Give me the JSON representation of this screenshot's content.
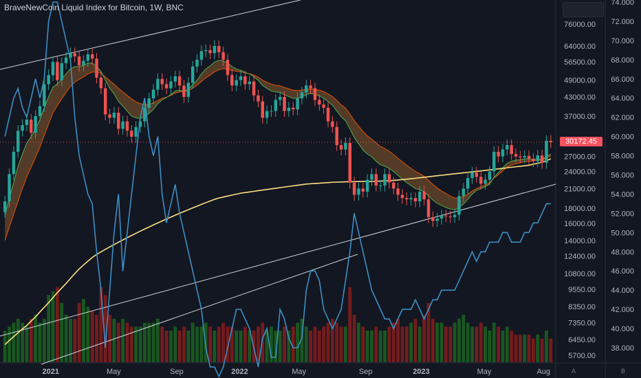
{
  "title": "BraveNewCoin Liquid Index for Bitcoin, 1W, BNC",
  "last_price_label": "30172.45",
  "bottom_buttons": [
    "A",
    "B"
  ],
  "colors": {
    "background": "#131722",
    "up_candle": "#26a69a",
    "down_candle": "#ef5350",
    "ema_fast": "#4caf50",
    "ema_slow": "#e65100",
    "ma_200": "#ffe082",
    "indicator_line": "#3d8fc4",
    "price_line": "#f7525f"
  },
  "chart_data": {
    "type": "line",
    "x_ticks": [
      "2021",
      "May",
      "Sep",
      "2022",
      "May",
      "Sep",
      "2023",
      "May",
      "Aug"
    ],
    "price_axis": {
      "scale": "log",
      "tick_labels": [
        "76000.00",
        "64000.00",
        "56500.00",
        "49000.00",
        "43000.00",
        "37000.00",
        "27000.00",
        "24000.00",
        "21000.00",
        "18000.00",
        "16000.00",
        "14000.00",
        "12400.00",
        "10800.00",
        "9550.00",
        "8350.00",
        "7350.00",
        "6450.00",
        "5700.00"
      ]
    },
    "indicator_axis": {
      "tick_labels": [
        "74.000",
        "72.000",
        "70.000",
        "68.000",
        "66.000",
        "64.000",
        "62.000",
        "60.000",
        "58.000",
        "56.000",
        "54.000",
        "52.000",
        "50.000",
        "48.000",
        "46.000",
        "44.000",
        "42.000",
        "40.000",
        "38.000"
      ]
    },
    "candles_close": [
      19000,
      23500,
      28000,
      33000,
      34500,
      36000,
      32500,
      37000,
      40000,
      47500,
      51000,
      56500,
      49000,
      56000,
      58500,
      60500,
      59000,
      55000,
      57000,
      60000,
      58000,
      50000,
      46000,
      37500,
      36500,
      38000,
      33500,
      35500,
      33000,
      31500,
      34000,
      35500,
      39500,
      42500,
      45500,
      49500,
      47500,
      46000,
      48500,
      50500,
      47000,
      43000,
      48000,
      54500,
      57500,
      61500,
      62000,
      60500,
      64000,
      61000,
      57500,
      51000,
      47000,
      49000,
      50500,
      47500,
      48500,
      43500,
      41500,
      36500,
      38500,
      38500,
      42000,
      43000,
      38500,
      39500,
      39000,
      42500,
      44500,
      47000,
      46000,
      42000,
      40500,
      39500,
      35500,
      34000,
      29500,
      28500,
      30000,
      22000,
      20000,
      21000,
      20500,
      22500,
      23500,
      21500,
      21500,
      23500,
      22000,
      21000,
      20000,
      19500,
      19300,
      19500,
      19000,
      20500,
      19300,
      16800,
      16300,
      16600,
      17000,
      16900,
      16800,
      17100,
      19800,
      21000,
      22800,
      23800,
      23000,
      21800,
      22500,
      24000,
      28000,
      27000,
      28500,
      29500,
      27500,
      27000,
      26800,
      27100,
      26500,
      26000,
      27200,
      25700,
      30500,
      30172
    ],
    "ema_fast": [
      17000,
      19500,
      22000,
      25000,
      27500,
      30000,
      31500,
      33500,
      36000,
      39500,
      43000,
      46500,
      47500,
      49500,
      51500,
      53500,
      54500,
      54500,
      55000,
      56000,
      56000,
      54500,
      52500,
      49000,
      46000,
      44000,
      41500,
      40000,
      38500,
      37000,
      36500,
      36300,
      36800,
      37800,
      39000,
      40800,
      42000,
      42800,
      43800,
      45000,
      45300,
      45000,
      45600,
      47300,
      49000,
      51500,
      53500,
      54800,
      56500,
      57200,
      57000,
      56000,
      54500,
      53500,
      53000,
      52000,
      51500,
      50300,
      49000,
      47000,
      46000,
      45000,
      44700,
      44500,
      43700,
      43100,
      42500,
      42600,
      43000,
      43800,
      44200,
      43800,
      43300,
      42600,
      41500,
      40300,
      38500,
      36800,
      35700,
      33500,
      31300,
      29800,
      28400,
      27500,
      26900,
      26000,
      25300,
      25000,
      24600,
      24000,
      23300,
      22600,
      22000,
      21500,
      21000,
      20800,
      20500,
      19800,
      19200,
      18700,
      18400,
      18100,
      17900,
      17800,
      18100,
      18600,
      19300,
      20100,
      20700,
      21000,
      21300,
      21800,
      22900,
      23800,
      24700,
      25600,
      26000,
      26200,
      26300,
      26500,
      26500,
      26400,
      26500,
      26300,
      27000,
      27500
    ],
    "ema_slow": [
      14000,
      15500,
      17200,
      19000,
      21000,
      23000,
      24800,
      26800,
      29000,
      31800,
      34800,
      38000,
      40200,
      42300,
      44500,
      46700,
      48300,
      49300,
      50300,
      51500,
      52200,
      52200,
      51700,
      50300,
      48800,
      47500,
      46000,
      44700,
      43500,
      42300,
      41400,
      40800,
      40500,
      40600,
      41000,
      41800,
      42500,
      42900,
      43500,
      44300,
      44700,
      44800,
      45200,
      46000,
      47100,
      48500,
      49900,
      51000,
      52300,
      53200,
      53600,
      53400,
      52900,
      52500,
      52300,
      51900,
      51600,
      51000,
      50200,
      49000,
      48200,
      47500,
      47100,
      46900,
      46300,
      45800,
      45300,
      45200,
      45300,
      45600,
      45800,
      45600,
      45300,
      44800,
      44000,
      43100,
      41800,
      40400,
      39400,
      37600,
      35700,
      34200,
      32800,
      31700,
      30900,
      30000,
      29200,
      28700,
      28100,
      27400,
      26600,
      25900,
      25200,
      24600,
      24000,
      23600,
      23100,
      22400,
      21700,
      21100,
      20600,
      20200,
      19800,
      19500,
      19500,
      19700,
      20100,
      20600,
      21000,
      21300,
      21600,
      22000,
      22800,
      23400,
      24100,
      24800,
      25200,
      25500,
      25700,
      25900,
      26000,
      26100,
      26200,
      26200,
      26700,
      27100
    ],
    "ma_200": [
      6200,
      6400,
      6600,
      6800,
      7000,
      7200,
      7450,
      7700,
      8000,
      8300,
      8600,
      8950,
      9300,
      9650,
      10000,
      10400,
      10800,
      11200,
      11550,
      11900,
      12250,
      12550,
      12800,
      13050,
      13300,
      13550,
      13800,
      14050,
      14300,
      14550,
      14800,
      15050,
      15300,
      15550,
      15800,
      16050,
      16300,
      16550,
      16800,
      17050,
      17300,
      17550,
      17800,
      18050,
      18300,
      18550,
      18800,
      19050,
      19300,
      19500,
      19650,
      19800,
      19950,
      20100,
      20250,
      20350,
      20450,
      20550,
      20650,
      20750,
      20850,
      20950,
      21050,
      21150,
      21250,
      21350,
      21450,
      21550,
      21650,
      21750,
      21800,
      21850,
      21900,
      21950,
      22000,
      22050,
      22080,
      22100,
      22130,
      22150,
      22170,
      22180,
      22190,
      22200,
      22210,
      22230,
      22260,
      22300,
      22340,
      22390,
      22450,
      22520,
      22600,
      22680,
      22760,
      22850,
      22940,
      23030,
      23120,
      23210,
      23300,
      23390,
      23480,
      23570,
      23660,
      23750,
      23840,
      23930,
      24020,
      24110,
      24200,
      24300,
      24400,
      24500,
      24600,
      24700,
      24800,
      24900,
      25000,
      25100,
      25200,
      25400,
      25600,
      25800,
      26100,
      26500
    ],
    "indicator": [
      60,
      62,
      64,
      65,
      63,
      62,
      64,
      66,
      64,
      66,
      72,
      74,
      74,
      72,
      70,
      68,
      62,
      58,
      56,
      54,
      53,
      48,
      44,
      38,
      44,
      50,
      54,
      46,
      50,
      54,
      58,
      62,
      64,
      60,
      58,
      60,
      54,
      51,
      53,
      55,
      52,
      50,
      48,
      46,
      44,
      42,
      38,
      36,
      36,
      35,
      36,
      38,
      40,
      42,
      42,
      41,
      40,
      38,
      36,
      39,
      40,
      37,
      37,
      42,
      41,
      39,
      38,
      38,
      39,
      44,
      46,
      46,
      45,
      42,
      41,
      40,
      41,
      42,
      45,
      48,
      52,
      50,
      48,
      46,
      44,
      43,
      42,
      41,
      41,
      40,
      41,
      42,
      42,
      42,
      43,
      42,
      41,
      42,
      43,
      43,
      44,
      44,
      44,
      44,
      45,
      46,
      47,
      48,
      47,
      48,
      48,
      49,
      49,
      49,
      50,
      50,
      49,
      49,
      49,
      50,
      50,
      51,
      51,
      52,
      53,
      53
    ],
    "volume_rel": [
      0.4,
      0.45,
      0.5,
      0.55,
      0.5,
      0.45,
      0.55,
      0.6,
      0.5,
      0.55,
      0.85,
      0.9,
      0.95,
      0.75,
      0.6,
      0.55,
      0.55,
      0.75,
      0.8,
      0.7,
      0.65,
      0.6,
      0.95,
      0.85,
      0.6,
      0.55,
      0.5,
      0.55,
      0.5,
      0.45,
      0.45,
      0.45,
      0.5,
      0.5,
      0.5,
      0.55,
      0.45,
      0.4,
      0.4,
      0.45,
      0.4,
      0.45,
      0.4,
      0.5,
      0.45,
      0.45,
      0.5,
      0.45,
      0.4,
      0.45,
      0.5,
      0.45,
      0.45,
      0.4,
      0.4,
      0.45,
      0.4,
      0.4,
      0.45,
      0.5,
      0.4,
      0.45,
      0.4,
      0.4,
      0.45,
      0.4,
      0.45,
      0.5,
      0.55,
      0.45,
      0.4,
      0.45,
      0.4,
      0.45,
      0.5,
      0.55,
      0.5,
      0.45,
      0.45,
      0.95,
      0.6,
      0.5,
      0.45,
      0.4,
      0.4,
      0.45,
      0.4,
      0.4,
      0.45,
      0.5,
      0.55,
      0.45,
      0.45,
      0.5,
      0.55,
      0.45,
      0.6,
      0.75,
      0.55,
      0.5,
      0.5,
      0.45,
      0.45,
      0.5,
      0.55,
      0.6,
      0.5,
      0.45,
      0.45,
      0.5,
      0.45,
      0.4,
      0.5,
      0.45,
      0.4,
      0.45,
      0.4,
      0.35,
      0.35,
      0.35,
      0.35,
      0.3,
      0.35,
      0.3,
      0.4,
      0.3
    ],
    "grid": false,
    "legend": "none"
  }
}
